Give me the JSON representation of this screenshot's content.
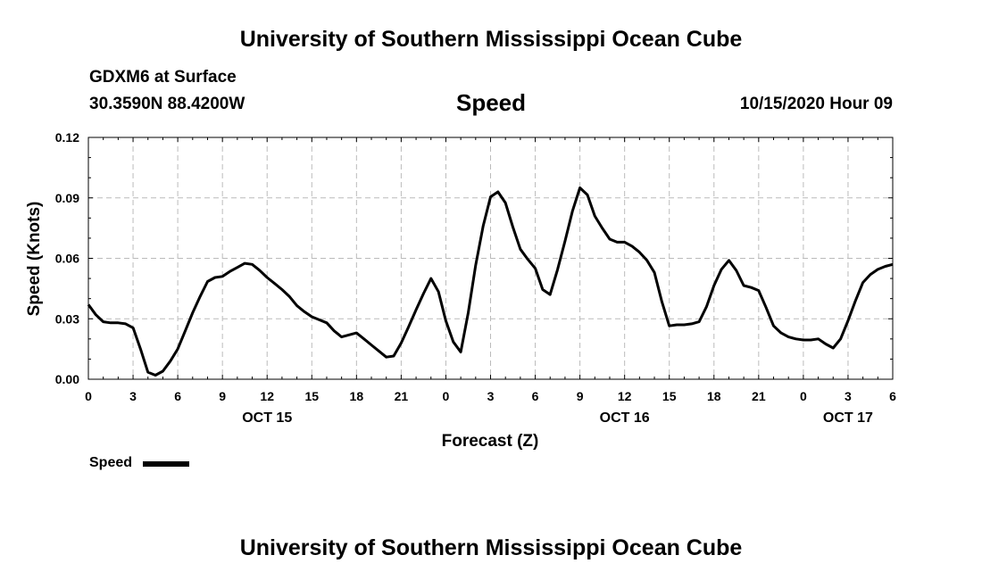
{
  "header": {
    "title": "University of Southern Mississippi Ocean Cube",
    "station": "GDXM6 at Surface",
    "coords": "30.3590N 88.4200W",
    "chart_title": "Speed",
    "datetime": "10/15/2020 Hour 09"
  },
  "footer": {
    "title": "University of Southern Mississippi Ocean Cube"
  },
  "legend": {
    "label": "Speed"
  },
  "colors": {
    "line": "#000000",
    "grid": "#bbbbbb",
    "background": "#ffffff"
  },
  "chart_data": {
    "type": "line",
    "title": "Speed",
    "xlabel": "Forecast (Z)",
    "ylabel": "Speed (Knots)",
    "xlim": [
      0,
      54
    ],
    "ylim": [
      0,
      0.12
    ],
    "grid": true,
    "legend_position": "bottom-left",
    "x_ticks": [
      0,
      3,
      6,
      9,
      12,
      15,
      18,
      21,
      24,
      27,
      30,
      33,
      36,
      39,
      42,
      45,
      48,
      51,
      54
    ],
    "x_tick_labels": [
      "0",
      "3",
      "6",
      "9",
      "12",
      "15",
      "18",
      "21",
      "0",
      "3",
      "6",
      "9",
      "12",
      "15",
      "18",
      "21",
      "0",
      "3",
      "6"
    ],
    "y_ticks": [
      0,
      0.03,
      0.06,
      0.09,
      0.12
    ],
    "y_tick_labels": [
      "0.00",
      "0.03",
      "0.06",
      "0.09",
      "0.12"
    ],
    "date_labels": [
      {
        "x": 12,
        "label": "OCT 15"
      },
      {
        "x": 36,
        "label": "OCT 16"
      },
      {
        "x": 51,
        "label": "OCT 17"
      }
    ],
    "series": [
      {
        "name": "Speed",
        "x": [
          0,
          0.5,
          1,
          1.5,
          2,
          2.5,
          3,
          3.5,
          4,
          4.5,
          5,
          5.5,
          6,
          6.5,
          7,
          7.5,
          8,
          8.5,
          9,
          9.5,
          10,
          10.5,
          11,
          11.5,
          12,
          12.5,
          13,
          13.5,
          14,
          14.5,
          15,
          15.5,
          16,
          16.5,
          17,
          17.5,
          18,
          18.5,
          19,
          19.5,
          20,
          20.5,
          21,
          21.5,
          22,
          22.5,
          23,
          23.5,
          24,
          24.5,
          25,
          25.5,
          26,
          26.5,
          27,
          27.5,
          28,
          28.5,
          29,
          29.5,
          30,
          30.5,
          31,
          31.5,
          32,
          32.5,
          33,
          33.5,
          34,
          34.5,
          35,
          35.5,
          36,
          36.5,
          37,
          37.5,
          38,
          38.5,
          39,
          39.5,
          40,
          40.5,
          41,
          41.5,
          42,
          42.5,
          43,
          43.5,
          44,
          44.5,
          45,
          45.5,
          46,
          46.5,
          47,
          47.5,
          48,
          48.5,
          49,
          49.5,
          50,
          50.5,
          51,
          51.5,
          52,
          52.5,
          53,
          53.5,
          54
        ],
        "values": [
          0.037,
          0.032,
          0.0285,
          0.028,
          0.028,
          0.0275,
          0.0255,
          0.015,
          0.0035,
          0.002,
          0.004,
          0.009,
          0.015,
          0.024,
          0.033,
          0.041,
          0.0485,
          0.0505,
          0.051,
          0.0535,
          0.0555,
          0.0575,
          0.057,
          0.054,
          0.0505,
          0.0475,
          0.0445,
          0.041,
          0.0365,
          0.0335,
          0.031,
          0.0295,
          0.028,
          0.024,
          0.021,
          0.022,
          0.023,
          0.02,
          0.017,
          0.014,
          0.011,
          0.0115,
          0.018,
          0.026,
          0.0345,
          0.0425,
          0.05,
          0.0435,
          0.029,
          0.0185,
          0.0135,
          0.033,
          0.0565,
          0.076,
          0.0905,
          0.093,
          0.0875,
          0.0755,
          0.0645,
          0.0595,
          0.055,
          0.0445,
          0.042,
          0.0545,
          0.0685,
          0.0835,
          0.095,
          0.0915,
          0.081,
          0.075,
          0.0695,
          0.068,
          0.068,
          0.066,
          0.063,
          0.059,
          0.053,
          0.0385,
          0.0265,
          0.027,
          0.027,
          0.0275,
          0.0285,
          0.036,
          0.0465,
          0.0545,
          0.059,
          0.054,
          0.0465,
          0.0455,
          0.044,
          0.0355,
          0.0265,
          0.023,
          0.021,
          0.02,
          0.0195,
          0.0195,
          0.02,
          0.0175,
          0.0155,
          0.02,
          0.029,
          0.039,
          0.048,
          0.052,
          0.0545,
          0.056,
          0.057
        ]
      }
    ]
  }
}
